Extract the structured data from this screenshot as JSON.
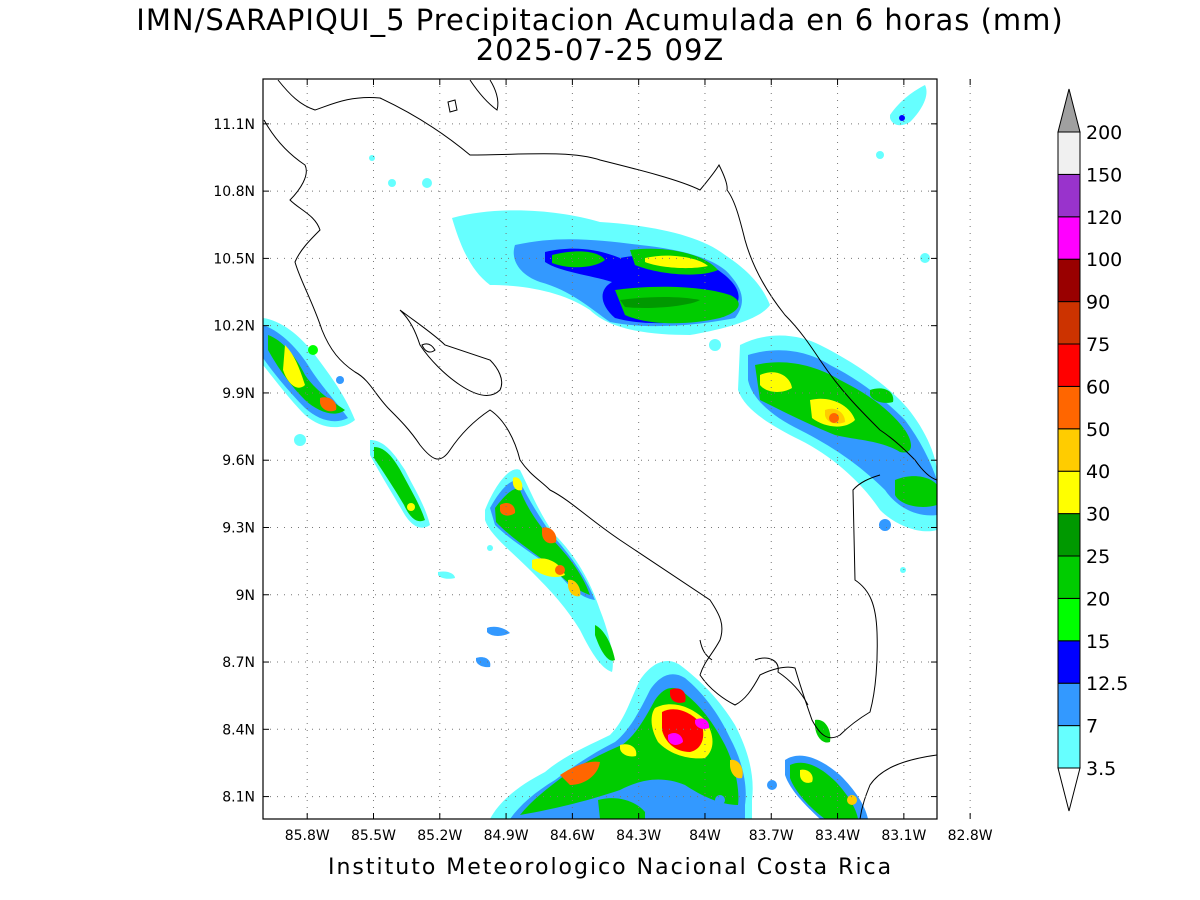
{
  "title": {
    "line1": "IMN/SARAPIQUI_5 Precipitacion Acumulada en 6 horas (mm)",
    "line2": "2025-07-25 09Z"
  },
  "footer": "Instituto Meteorologico Nacional Costa Rica",
  "axes": {
    "lat_labels": [
      "11.1N",
      "10.8N",
      "10.5N",
      "10.2N",
      "9.9N",
      "9.6N",
      "9.3N",
      "9N",
      "8.7N",
      "8.4N",
      "8.1N"
    ],
    "lon_labels": [
      "85.8W",
      "85.5W",
      "85.2W",
      "84.9W",
      "84.6W",
      "84.3W",
      "84W",
      "83.7W",
      "83.4W",
      "83.1W",
      "82.8W"
    ],
    "lat_values": [
      11.1,
      10.8,
      10.5,
      10.2,
      9.9,
      9.6,
      9.3,
      9.0,
      8.7,
      8.4,
      8.1
    ],
    "lon_values": [
      -85.8,
      -85.5,
      -85.2,
      -84.9,
      -84.6,
      -84.3,
      -84.0,
      -83.7,
      -83.4,
      -83.1,
      -82.8
    ],
    "lat_range": [
      8.0,
      11.3
    ],
    "lon_range": [
      -86.0,
      -82.95
    ],
    "grid": "dotted"
  },
  "colorbar": {
    "labels": [
      "3.5",
      "7",
      "12.5",
      "15",
      "20",
      "25",
      "30",
      "40",
      "50",
      "60",
      "75",
      "90",
      "100",
      "120",
      "150",
      "200"
    ],
    "colors": [
      "#66ffff",
      "#3399ff",
      "#0000ff",
      "#00ff00",
      "#00cc00",
      "#009900",
      "#ffff00",
      "#ffcc00",
      "#ff6600",
      "#ff0000",
      "#cc3300",
      "#990000",
      "#ff00ff",
      "#9933cc",
      "#f0f0f0"
    ],
    "over_color": "#a0a0a0",
    "under_color": "#ffffff"
  }
}
